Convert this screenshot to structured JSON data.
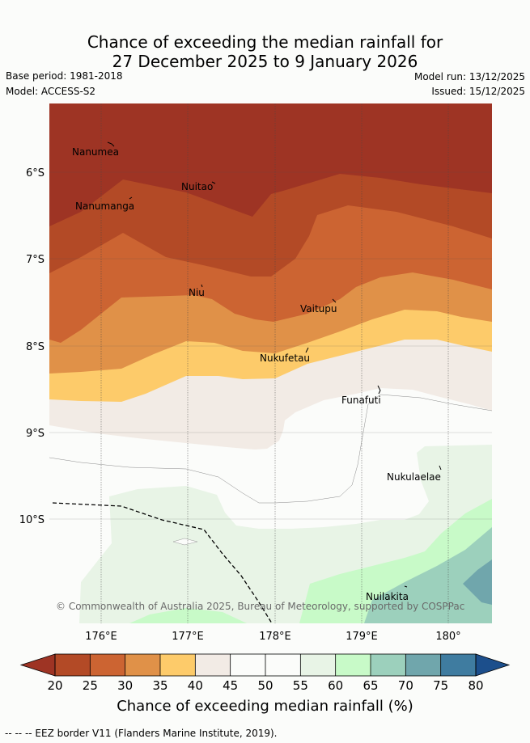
{
  "title": {
    "line1": "Chance of exceeding the median rainfall for",
    "line2": "27 December 2025 to 9 January 2026"
  },
  "meta": {
    "base_period": "Base period: 1981-2018",
    "model": "Model: ACCESS-S2",
    "model_run": "Model run: 13/12/2025",
    "issued": "Issued: 15/12/2025"
  },
  "map": {
    "lat_labels": [
      "6°S",
      "7°S",
      "8°S",
      "9°S",
      "10°S"
    ],
    "lon_labels": [
      "176°E",
      "177°E",
      "178°E",
      "179°E",
      "180°"
    ],
    "places": [
      "Nanumea",
      "Nuitao",
      "Nanumanga",
      "Niu",
      "Vaitupu",
      "Nukufetau",
      "Funafuti",
      "Nukulaelae",
      "Nuilakita"
    ],
    "copyright": "© Commonwealth of Australia 2025, Bureau of Meteorology, supported by COSPPac"
  },
  "colorbar": {
    "title": "Chance of exceeding median rainfall (%)",
    "ticks": [
      "20",
      "25",
      "30",
      "35",
      "40",
      "45",
      "50",
      "55",
      "60",
      "65",
      "70",
      "75",
      "80"
    ],
    "colors": [
      "#9e3424",
      "#b34a26",
      "#cc6432",
      "#e09148",
      "#fdcb6a",
      "#f2ebe5",
      "#fbfcfa",
      "#fbfcfa",
      "#e8f4e6",
      "#c8fac8",
      "#9cd0bc",
      "#70a6ac",
      "#3f7ca0",
      "#1c4f8c"
    ]
  },
  "footer": "--  --  -- EEZ border V11 (Flanders Marine Institute, 2019)."
}
